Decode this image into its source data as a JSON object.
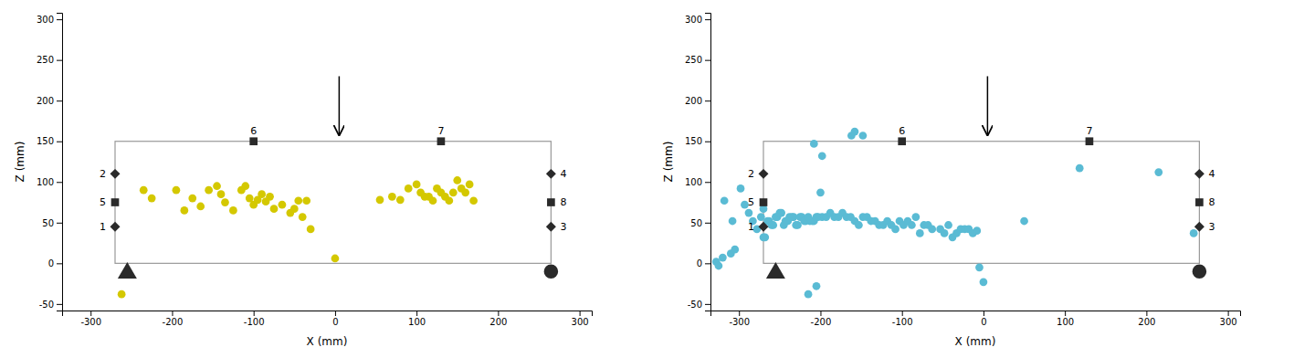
{
  "chart_data": [
    {
      "type": "scatter",
      "xlabel": "X (mm)",
      "ylabel": "Z (mm)",
      "grid": false,
      "color": "#d4c800",
      "xlim": [
        -335,
        315
      ],
      "ylim": [
        -58,
        308
      ],
      "xticks": [
        -300,
        -200,
        -100,
        0,
        100,
        200,
        300
      ],
      "yticks": [
        -50,
        0,
        50,
        100,
        150,
        200,
        250,
        300
      ],
      "x": [
        -235,
        -225,
        -195,
        -185,
        -175,
        -165,
        -155,
        -145,
        -140,
        -135,
        -125,
        -115,
        -110,
        -105,
        -100,
        -95,
        -90,
        -85,
        -80,
        -75,
        -65,
        -55,
        -50,
        -45,
        -40,
        -35,
        -30,
        55,
        70,
        80,
        90,
        100,
        105,
        110,
        115,
        120,
        125,
        130,
        135,
        140,
        145,
        150,
        155,
        160,
        165,
        170,
        0,
        -262
      ],
      "values": [
        90,
        80,
        90,
        65,
        80,
        70,
        90,
        95,
        85,
        75,
        65,
        90,
        95,
        80,
        72,
        78,
        85,
        76,
        82,
        67,
        72,
        62,
        67,
        77,
        57,
        77,
        42,
        78,
        82,
        78,
        92,
        97,
        87,
        82,
        82,
        77,
        92,
        87,
        82,
        77,
        87,
        102,
        92,
        87,
        97,
        77,
        6,
        -38
      ],
      "frame": {
        "x": -270,
        "z": 0,
        "width": 535,
        "height": 150,
        "color": "#999999"
      },
      "sensors": [
        {
          "label": "1",
          "x": -270,
          "z": 45,
          "marker": "diamond",
          "color": "#2a2a2a"
        },
        {
          "label": "2",
          "x": -270,
          "z": 110,
          "marker": "diamond",
          "color": "#2a2a2a"
        },
        {
          "label": "3",
          "x": 265,
          "z": 45,
          "marker": "diamond",
          "color": "#2a2a2a"
        },
        {
          "label": "4",
          "x": 265,
          "z": 110,
          "marker": "diamond",
          "color": "#2a2a2a"
        },
        {
          "label": "5",
          "x": -270,
          "z": 75,
          "marker": "square",
          "color": "#2a2a2a"
        },
        {
          "label": "6",
          "x": -100,
          "z": 150,
          "marker": "square",
          "color": "#2a2a2a"
        },
        {
          "label": "7",
          "x": 130,
          "z": 150,
          "marker": "square",
          "color": "#2a2a2a"
        },
        {
          "label": "8",
          "x": 265,
          "z": 75,
          "marker": "square",
          "color": "#2a2a2a"
        }
      ],
      "supports": [
        {
          "x": -255,
          "z": -12,
          "marker": "triangle",
          "color": "#2a2a2a"
        },
        {
          "x": 265,
          "z": -10,
          "marker": "circle",
          "color": "#2a2a2a"
        }
      ],
      "arrow": {
        "x": 5,
        "z_start": 230,
        "z_end": 158
      }
    },
    {
      "type": "scatter",
      "xlabel": "X (mm)",
      "ylabel": "Z (mm)",
      "grid": false,
      "color": "#5abbd4",
      "xlim": [
        -335,
        315
      ],
      "ylim": [
        -58,
        308
      ],
      "xticks": [
        -300,
        -200,
        -100,
        0,
        100,
        200,
        300
      ],
      "yticks": [
        -50,
        0,
        50,
        100,
        150,
        200,
        250,
        300
      ],
      "x": [
        -328,
        -318,
        -308,
        -298,
        -293,
        -288,
        -283,
        -278,
        -273,
        -268,
        -263,
        -258,
        -253,
        -248,
        -243,
        -238,
        -233,
        -228,
        -223,
        -218,
        -213,
        -208,
        -203,
        -198,
        -193,
        -188,
        -183,
        -178,
        -173,
        -168,
        -163,
        -158,
        -153,
        -148,
        -143,
        -138,
        -133,
        -128,
        -123,
        -118,
        -113,
        -108,
        -103,
        -98,
        -93,
        -88,
        -83,
        -78,
        -73,
        -68,
        -63,
        -53,
        -48,
        -43,
        -38,
        -33,
        -28,
        -23,
        -18,
        -13,
        -8,
        -270,
        -265,
        -260,
        -255,
        -250,
        -245,
        -240,
        -235,
        -230,
        -225,
        -220,
        -215,
        -210,
        -205,
        -200,
        0,
        118,
        215,
        258,
        -5,
        -325,
        -320,
        -310,
        -305,
        50,
        -198,
        -208,
        -162,
        -158,
        -148,
        -205,
        -215,
        -270
      ],
      "values": [
        2,
        77,
        52,
        92,
        72,
        62,
        52,
        42,
        57,
        32,
        52,
        47,
        57,
        62,
        52,
        57,
        57,
        47,
        57,
        52,
        52,
        52,
        57,
        57,
        57,
        62,
        57,
        57,
        62,
        57,
        57,
        52,
        47,
        57,
        57,
        52,
        52,
        47,
        47,
        52,
        47,
        42,
        52,
        47,
        52,
        47,
        57,
        37,
        47,
        47,
        42,
        42,
        37,
        47,
        32,
        37,
        42,
        42,
        42,
        37,
        40,
        32,
        52,
        47,
        57,
        62,
        47,
        52,
        57,
        47,
        57,
        52,
        57,
        52,
        57,
        87,
        -23,
        117,
        112,
        37,
        -5,
        -3,
        7,
        12,
        17,
        52,
        132,
        147,
        157,
        162,
        157,
        -28,
        -38,
        67
      ],
      "frame": {
        "x": -270,
        "z": 0,
        "width": 535,
        "height": 150,
        "color": "#999999"
      },
      "sensors": [
        {
          "label": "1",
          "x": -270,
          "z": 45,
          "marker": "diamond",
          "color": "#2a2a2a"
        },
        {
          "label": "2",
          "x": -270,
          "z": 110,
          "marker": "diamond",
          "color": "#2a2a2a"
        },
        {
          "label": "3",
          "x": 265,
          "z": 45,
          "marker": "diamond",
          "color": "#2a2a2a"
        },
        {
          "label": "4",
          "x": 265,
          "z": 110,
          "marker": "diamond",
          "color": "#2a2a2a"
        },
        {
          "label": "5",
          "x": -270,
          "z": 75,
          "marker": "square",
          "color": "#2a2a2a"
        },
        {
          "label": "6",
          "x": -100,
          "z": 150,
          "marker": "square",
          "color": "#2a2a2a"
        },
        {
          "label": "7",
          "x": 130,
          "z": 150,
          "marker": "square",
          "color": "#2a2a2a"
        },
        {
          "label": "8",
          "x": 265,
          "z": 75,
          "marker": "square",
          "color": "#2a2a2a"
        }
      ],
      "supports": [
        {
          "x": -255,
          "z": -12,
          "marker": "triangle",
          "color": "#2a2a2a"
        },
        {
          "x": 265,
          "z": -10,
          "marker": "circle",
          "color": "#2a2a2a"
        }
      ],
      "arrow": {
        "x": 5,
        "z_start": 230,
        "z_end": 158
      }
    }
  ]
}
